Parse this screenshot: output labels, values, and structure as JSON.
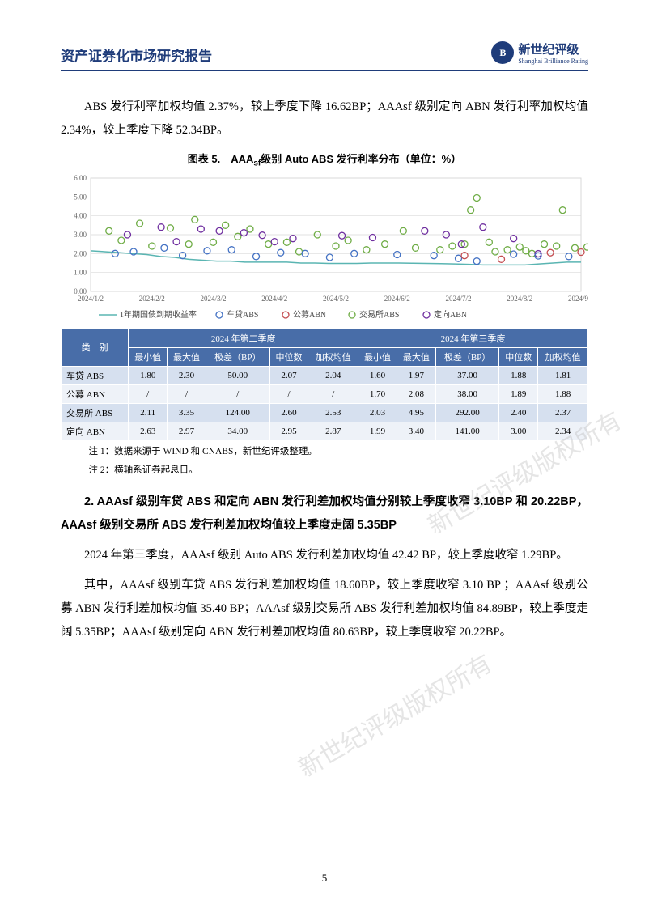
{
  "header": {
    "title": "资产证券化市场研究报告",
    "logo_cn": "新世纪评级",
    "logo_en": "Shanghai Brilliance Rating",
    "logo_badge": "B"
  },
  "para1": "ABS 发行利率加权均值 2.37%，较上季度下降 16.62BP；AAAsf 级别定向 ABN 发行利率加权均值 2.34%，较上季度下降 52.34BP。",
  "chart": {
    "title_prefix": "图表 5.　AAA",
    "title_sub": "sf",
    "title_suffix": "级别 Auto ABS 发行利率分布（单位：%）",
    "ylim": [
      0,
      6
    ],
    "ytick_step": 1,
    "xlabels": [
      "2024/1/2",
      "2024/2/2",
      "2024/3/2",
      "2024/4/2",
      "2024/5/2",
      "2024/6/2",
      "2024/7/2",
      "2024/8/2",
      "2024/9/2"
    ],
    "background_color": "#ffffff",
    "grid_color": "#d9d9d9",
    "tick_fontsize": 9,
    "legend": [
      {
        "label": "1年期国债到期收益率",
        "type": "line",
        "color": "#5ab5b2"
      },
      {
        "label": "车贷ABS",
        "type": "marker",
        "color": "#4472c4"
      },
      {
        "label": "公募ABN",
        "type": "marker",
        "color": "#c44e52"
      },
      {
        "label": "交易所ABS",
        "type": "marker",
        "color": "#70ad47"
      },
      {
        "label": "定向ABN",
        "type": "marker",
        "color": "#7030a0"
      }
    ],
    "bond_line": {
      "color": "#5ab5b2",
      "width": 1.5,
      "y": [
        2.15,
        2.1,
        2.05,
        2.0,
        1.95,
        1.85,
        1.8,
        1.7,
        1.65,
        1.6,
        1.6,
        1.55,
        1.55,
        1.55,
        1.55,
        1.5,
        1.5,
        1.48,
        1.48,
        1.48,
        1.5,
        1.5,
        1.5,
        1.49,
        1.48,
        1.47,
        1.45,
        1.43,
        1.4,
        1.4,
        1.4,
        1.4,
        1.45,
        1.5,
        1.55,
        1.55
      ]
    },
    "series_car": {
      "color": "#4472c4",
      "marker": "circle",
      "size": 4,
      "points": [
        [
          0.4,
          2.0
        ],
        [
          0.7,
          2.1
        ],
        [
          1.2,
          2.3
        ],
        [
          1.5,
          1.9
        ],
        [
          1.9,
          2.15
        ],
        [
          2.3,
          2.2
        ],
        [
          2.7,
          1.85
        ],
        [
          3.1,
          2.05
        ],
        [
          3.5,
          2.0
        ],
        [
          3.9,
          1.8
        ],
        [
          4.3,
          2.0
        ],
        [
          5.0,
          1.95
        ],
        [
          5.6,
          1.9
        ],
        [
          6.0,
          1.75
        ],
        [
          6.3,
          1.6
        ],
        [
          6.9,
          1.97
        ],
        [
          7.3,
          1.88
        ],
        [
          7.8,
          1.85
        ],
        [
          8.2,
          1.9
        ]
      ]
    },
    "series_abn_pub": {
      "color": "#c44e52",
      "marker": "circle",
      "size": 4,
      "points": [
        [
          6.1,
          1.9
        ],
        [
          6.7,
          1.7
        ],
        [
          7.5,
          2.05
        ],
        [
          8.0,
          2.08
        ]
      ]
    },
    "series_exch": {
      "color": "#70ad47",
      "marker": "circle",
      "size": 4,
      "points": [
        [
          0.3,
          3.2
        ],
        [
          0.5,
          2.7
        ],
        [
          0.8,
          3.6
        ],
        [
          1.0,
          2.4
        ],
        [
          1.3,
          3.35
        ],
        [
          1.6,
          2.5
        ],
        [
          1.7,
          3.8
        ],
        [
          2.0,
          2.6
        ],
        [
          2.2,
          3.5
        ],
        [
          2.4,
          2.9
        ],
        [
          2.6,
          3.3
        ],
        [
          2.9,
          2.5
        ],
        [
          3.2,
          2.6
        ],
        [
          3.4,
          2.1
        ],
        [
          3.7,
          3.0
        ],
        [
          4.0,
          2.4
        ],
        [
          4.2,
          2.7
        ],
        [
          4.5,
          2.2
        ],
        [
          4.8,
          2.5
        ],
        [
          5.1,
          3.2
        ],
        [
          5.3,
          2.3
        ],
        [
          5.7,
          2.2
        ],
        [
          5.9,
          2.4
        ],
        [
          6.1,
          2.5
        ],
        [
          6.2,
          4.3
        ],
        [
          6.3,
          4.95
        ],
        [
          6.5,
          2.6
        ],
        [
          6.6,
          2.1
        ],
        [
          6.8,
          2.2
        ],
        [
          7.0,
          2.35
        ],
        [
          7.1,
          2.15
        ],
        [
          7.2,
          2.0
        ],
        [
          7.4,
          2.5
        ],
        [
          7.6,
          2.4
        ],
        [
          7.7,
          4.3
        ],
        [
          7.9,
          2.3
        ],
        [
          8.1,
          2.35
        ],
        [
          8.3,
          2.1
        ],
        [
          8.5,
          2.5
        ]
      ]
    },
    "series_abn_priv": {
      "color": "#7030a0",
      "marker": "circle",
      "size": 4,
      "points": [
        [
          0.6,
          3.0
        ],
        [
          1.15,
          3.4
        ],
        [
          1.4,
          2.63
        ],
        [
          1.8,
          3.3
        ],
        [
          2.1,
          3.2
        ],
        [
          2.5,
          3.1
        ],
        [
          2.8,
          2.97
        ],
        [
          3.0,
          2.63
        ],
        [
          3.3,
          2.8
        ],
        [
          4.1,
          2.95
        ],
        [
          4.6,
          2.85
        ],
        [
          5.45,
          3.2
        ],
        [
          5.8,
          3.0
        ],
        [
          6.05,
          2.5
        ],
        [
          6.4,
          3.4
        ],
        [
          6.9,
          2.8
        ],
        [
          7.3,
          1.99
        ],
        [
          8.4,
          3.0
        ]
      ]
    }
  },
  "table": {
    "header_bg": "#486da8",
    "header_color": "#ffffff",
    "row_odd_bg": "#d6e0ef",
    "row_even_bg": "#eef2f8",
    "group_labels": [
      "2024 年第二季度",
      "2024 年第三季度"
    ],
    "col_category": "类　别",
    "cols": [
      "最小值",
      "最大值",
      "极差（BP）",
      "中位数",
      "加权均值"
    ],
    "rows": [
      {
        "name": "车贷 ABS",
        "q2": [
          "1.80",
          "2.30",
          "50.00",
          "2.07",
          "2.04"
        ],
        "q3": [
          "1.60",
          "1.97",
          "37.00",
          "1.88",
          "1.81"
        ]
      },
      {
        "name": "公募 ABN",
        "q2": [
          "/",
          "/",
          "/",
          "/",
          "/"
        ],
        "q3": [
          "1.70",
          "2.08",
          "38.00",
          "1.89",
          "1.88"
        ]
      },
      {
        "name": "交易所 ABS",
        "q2": [
          "2.11",
          "3.35",
          "124.00",
          "2.60",
          "2.53"
        ],
        "q3": [
          "2.03",
          "4.95",
          "292.00",
          "2.40",
          "2.37"
        ]
      },
      {
        "name": "定向 ABN",
        "q2": [
          "2.63",
          "2.97",
          "34.00",
          "2.95",
          "2.87"
        ],
        "q3": [
          "1.99",
          "3.40",
          "141.00",
          "3.00",
          "2.34"
        ]
      }
    ]
  },
  "notes": {
    "n1": "注 1：数据来源于 WIND 和 CNABS，新世纪评级整理。",
    "n2": "注 2：横轴系证券起息日。"
  },
  "heading2": "2. AAAsf 级别车贷 ABS 和定向 ABN 发行利差加权均值分别较上季度收窄 3.10BP 和 20.22BP，AAAsf 级别交易所 ABS 发行利差加权均值较上季度走阔 5.35BP",
  "para2": "2024 年第三季度，AAAsf 级别 Auto ABS 发行利差加权均值 42.42 BP，较上季度收窄 1.29BP。",
  "para3": "其中，AAAsf 级别车贷 ABS 发行利差加权均值 18.60BP，较上季度收窄 3.10 BP ；AAAsf 级别公募 ABN 发行利差加权均值 35.40 BP；AAAsf 级别交易所 ABS 发行利差加权均值 84.89BP，较上季度走阔 5.35BP；AAAsf 级别定向 ABN 发行利差加权均值 80.63BP，较上季度收窄 20.22BP。",
  "watermark": "新世纪评级版权所有",
  "page_number": "5"
}
